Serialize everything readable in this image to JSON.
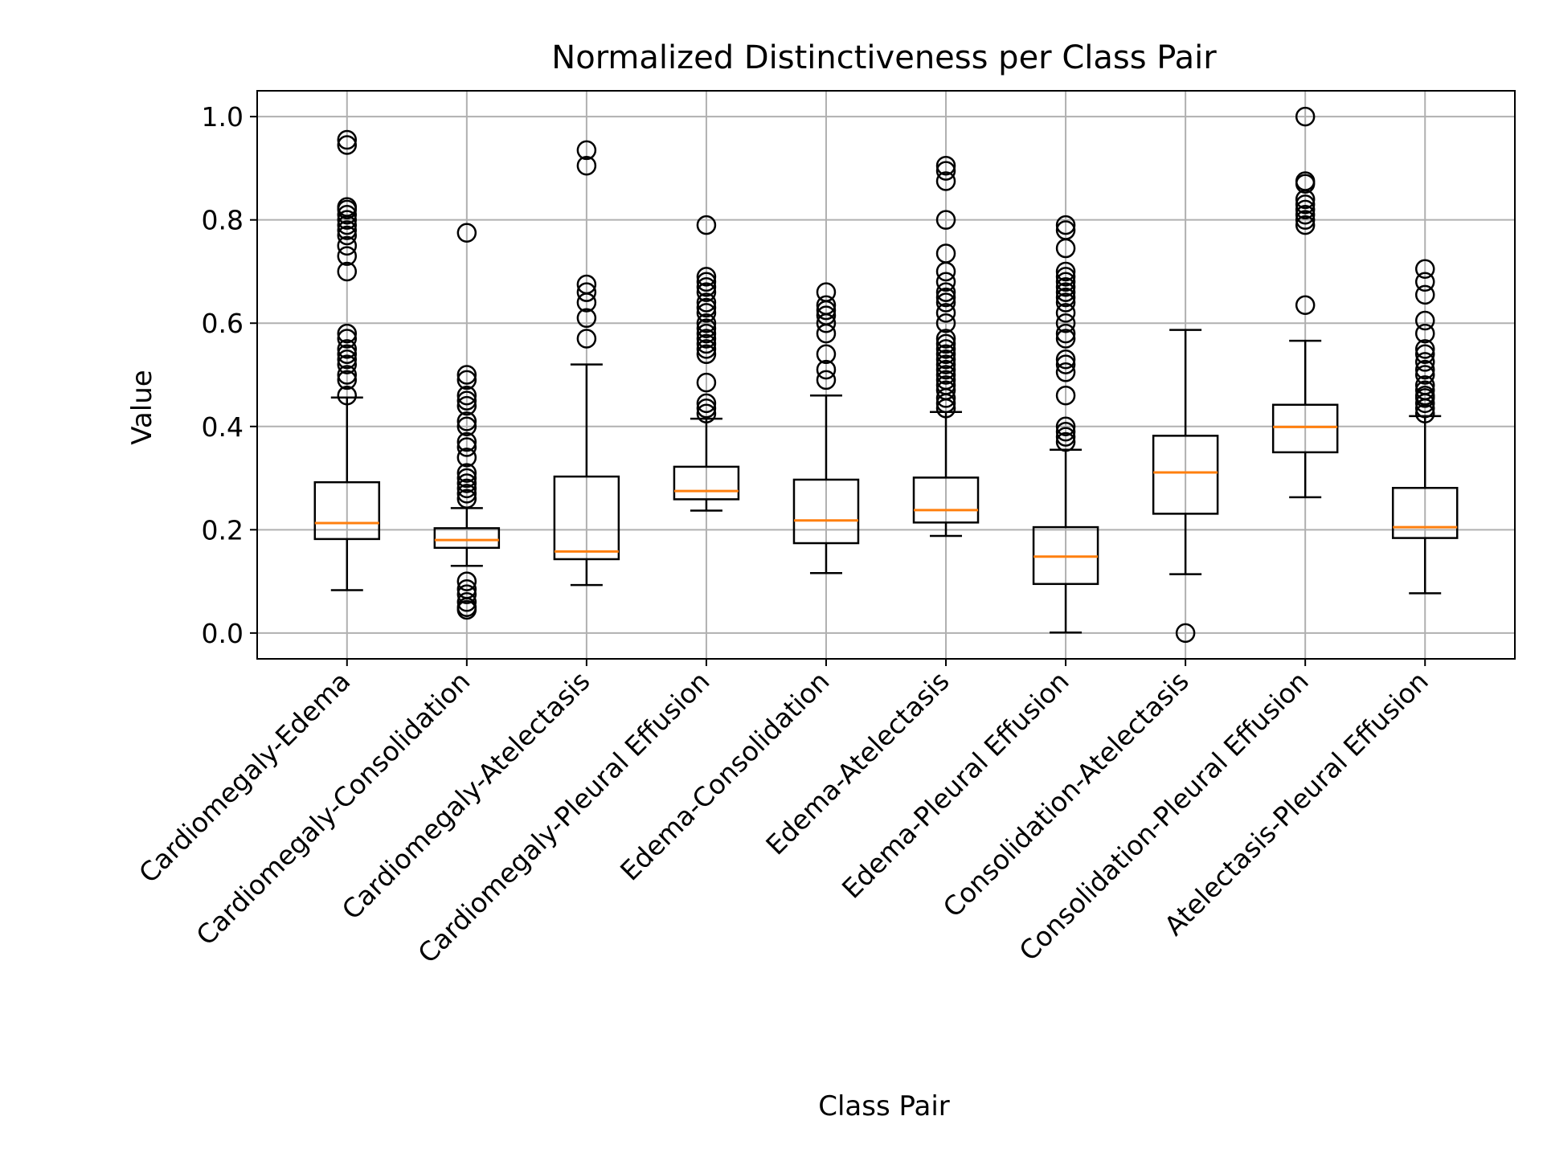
{
  "chart_data": {
    "type": "box",
    "title": "Normalized Distinctiveness per Class Pair",
    "xlabel": "Class Pair",
    "ylabel": "Value",
    "ylim": [
      -0.05,
      1.05
    ],
    "yticks": [
      0.0,
      0.2,
      0.4,
      0.6,
      0.8,
      1.0
    ],
    "ytick_labels": [
      "0.0",
      "0.2",
      "0.4",
      "0.6",
      "0.8",
      "1.0"
    ],
    "grid": true,
    "colors": {
      "box": "#000000",
      "median": "#ff7f0e",
      "grid": "#b0b0b0"
    },
    "categories": [
      "Cardiomegaly-Edema",
      "Cardiomegaly-Consolidation",
      "Cardiomegaly-Atelectasis",
      "Cardiomegaly-Pleural Effusion",
      "Edema-Consolidation",
      "Edema-Atelectasis",
      "Edema-Pleural Effusion",
      "Consolidation-Atelectasis",
      "Consolidation-Pleural Effusion",
      "Atelectasis-Pleural Effusion"
    ],
    "boxes": [
      {
        "whislo": 0.083,
        "q1": 0.182,
        "median": 0.213,
        "q3": 0.292,
        "whishi": 0.456,
        "fliers": [
          0.46,
          0.49,
          0.5,
          0.52,
          0.53,
          0.54,
          0.55,
          0.57,
          0.58,
          0.7,
          0.73,
          0.75,
          0.77,
          0.78,
          0.79,
          0.8,
          0.81,
          0.82,
          0.825,
          0.945,
          0.955
        ]
      },
      {
        "whislo": 0.13,
        "q1": 0.165,
        "median": 0.18,
        "q3": 0.203,
        "whishi": 0.242,
        "fliers": [
          0.045,
          0.05,
          0.06,
          0.075,
          0.085,
          0.1,
          0.26,
          0.27,
          0.28,
          0.29,
          0.3,
          0.31,
          0.34,
          0.36,
          0.37,
          0.4,
          0.41,
          0.44,
          0.45,
          0.46,
          0.49,
          0.5,
          0.775
        ]
      },
      {
        "whislo": 0.093,
        "q1": 0.143,
        "median": 0.158,
        "q3": 0.303,
        "whishi": 0.52,
        "fliers": [
          0.57,
          0.61,
          0.64,
          0.66,
          0.675,
          0.905,
          0.935
        ]
      },
      {
        "whislo": 0.237,
        "q1": 0.259,
        "median": 0.275,
        "q3": 0.322,
        "whishi": 0.415,
        "fliers": [
          0.425,
          0.435,
          0.445,
          0.485,
          0.54,
          0.55,
          0.56,
          0.57,
          0.58,
          0.59,
          0.6,
          0.62,
          0.63,
          0.64,
          0.66,
          0.67,
          0.68,
          0.69,
          0.79
        ]
      },
      {
        "whislo": 0.116,
        "q1": 0.174,
        "median": 0.218,
        "q3": 0.297,
        "whishi": 0.46,
        "fliers": [
          0.49,
          0.51,
          0.54,
          0.58,
          0.6,
          0.615,
          0.625,
          0.635,
          0.66
        ]
      },
      {
        "whislo": 0.188,
        "q1": 0.214,
        "median": 0.238,
        "q3": 0.301,
        "whishi": 0.428,
        "fliers": [
          0.435,
          0.445,
          0.455,
          0.47,
          0.48,
          0.49,
          0.5,
          0.51,
          0.52,
          0.53,
          0.54,
          0.55,
          0.56,
          0.57,
          0.6,
          0.62,
          0.64,
          0.65,
          0.66,
          0.68,
          0.7,
          0.735,
          0.8,
          0.875,
          0.895,
          0.905
        ]
      },
      {
        "whislo": 0.001,
        "q1": 0.095,
        "median": 0.148,
        "q3": 0.205,
        "whishi": 0.355,
        "fliers": [
          0.37,
          0.38,
          0.39,
          0.4,
          0.46,
          0.505,
          0.52,
          0.53,
          0.57,
          0.58,
          0.6,
          0.62,
          0.64,
          0.65,
          0.66,
          0.67,
          0.68,
          0.69,
          0.7,
          0.745,
          0.78,
          0.79
        ]
      },
      {
        "whislo": 0.114,
        "q1": 0.231,
        "median": 0.311,
        "q3": 0.382,
        "whishi": 0.587,
        "fliers": [
          0.0
        ]
      },
      {
        "whislo": 0.263,
        "q1": 0.35,
        "median": 0.399,
        "q3": 0.442,
        "whishi": 0.566,
        "fliers": [
          0.635,
          0.79,
          0.8,
          0.81,
          0.82,
          0.83,
          0.84,
          0.87,
          0.875,
          1.0
        ]
      },
      {
        "whislo": 0.077,
        "q1": 0.184,
        "median": 0.205,
        "q3": 0.281,
        "whishi": 0.42,
        "fliers": [
          0.425,
          0.435,
          0.445,
          0.455,
          0.46,
          0.47,
          0.48,
          0.5,
          0.51,
          0.525,
          0.54,
          0.55,
          0.58,
          0.605,
          0.655,
          0.68,
          0.705
        ]
      }
    ]
  }
}
